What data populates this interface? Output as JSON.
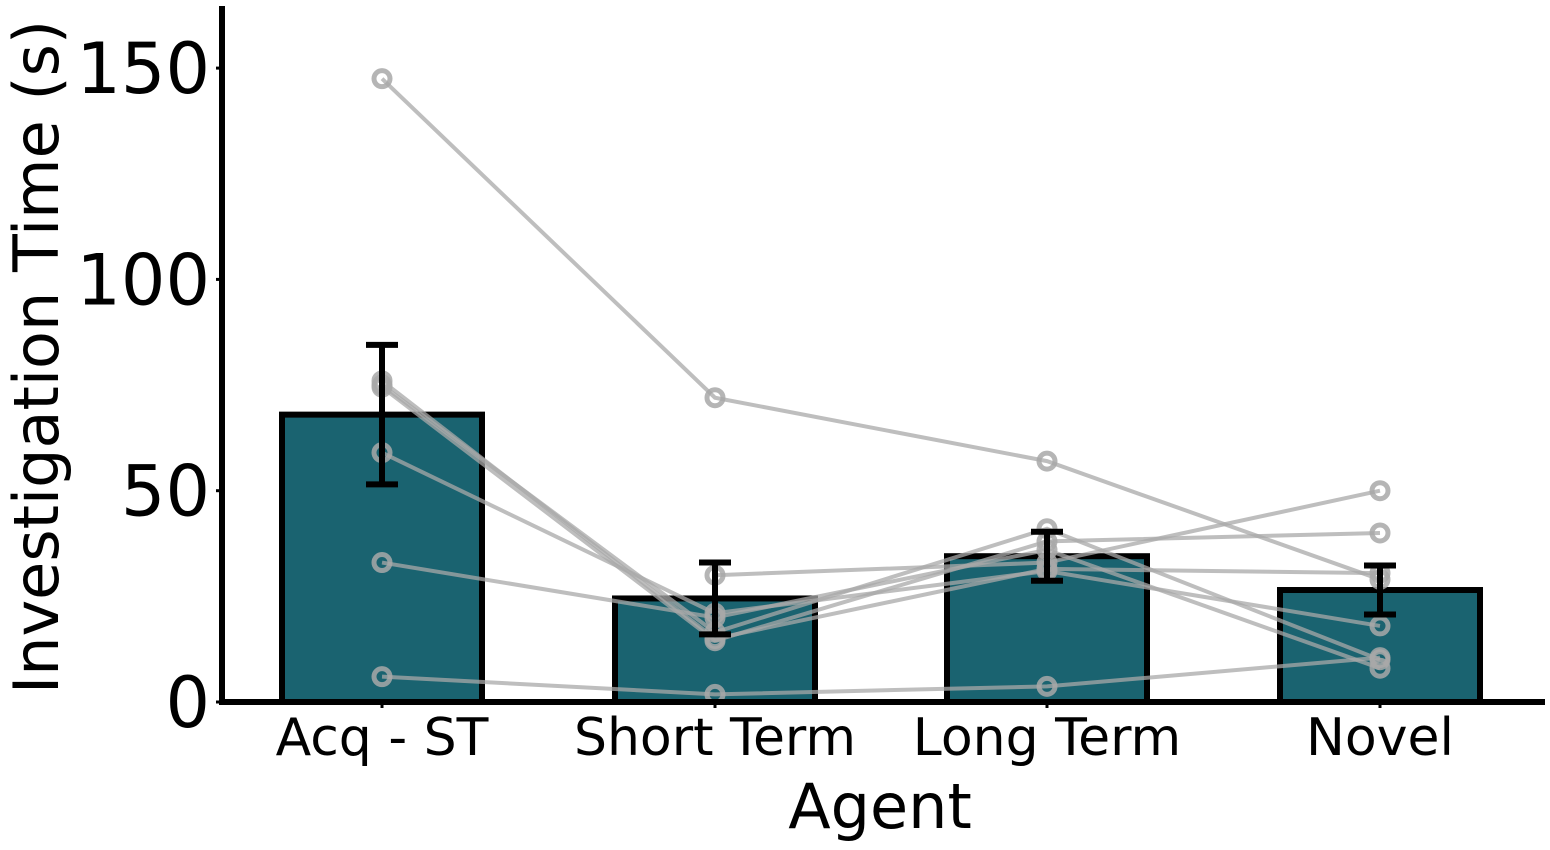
{
  "chart_data": {
    "type": "bar",
    "title": "",
    "xlabel": "Agent",
    "ylabel": "Investigation Time (s)",
    "categories": [
      "Acq - ST",
      "Short Term",
      "Long Term",
      "Novel"
    ],
    "values": [
      68,
      24.5,
      34.5,
      26.5
    ],
    "error": [
      16.5,
      8.5,
      5.8,
      5.8
    ],
    "ylim": [
      0,
      165
    ],
    "yticks": [
      0,
      50,
      100,
      150
    ],
    "bar_color": "#1a6370",
    "bar_edge_color": "#000000",
    "individual_color": "#a8a8a8",
    "grid": false,
    "individuals": [
      {
        "values": [
          147.5,
          72,
          57,
          29
        ]
      },
      {
        "values": [
          76,
          15,
          31.5,
          30.5
        ]
      },
      {
        "values": [
          75,
          16.5,
          41,
          10
        ]
      },
      {
        "values": [
          74.5,
          14.5,
          38,
          40
        ]
      },
      {
        "values": [
          59,
          21,
          31,
          18
        ]
      },
      {
        "values": [
          33,
          20,
          36,
          8
        ]
      },
      {
        "values": [
          6,
          1.8,
          3.7,
          10.5
        ]
      },
      {
        "values": [
          null,
          30,
          33,
          50
        ]
      }
    ]
  }
}
